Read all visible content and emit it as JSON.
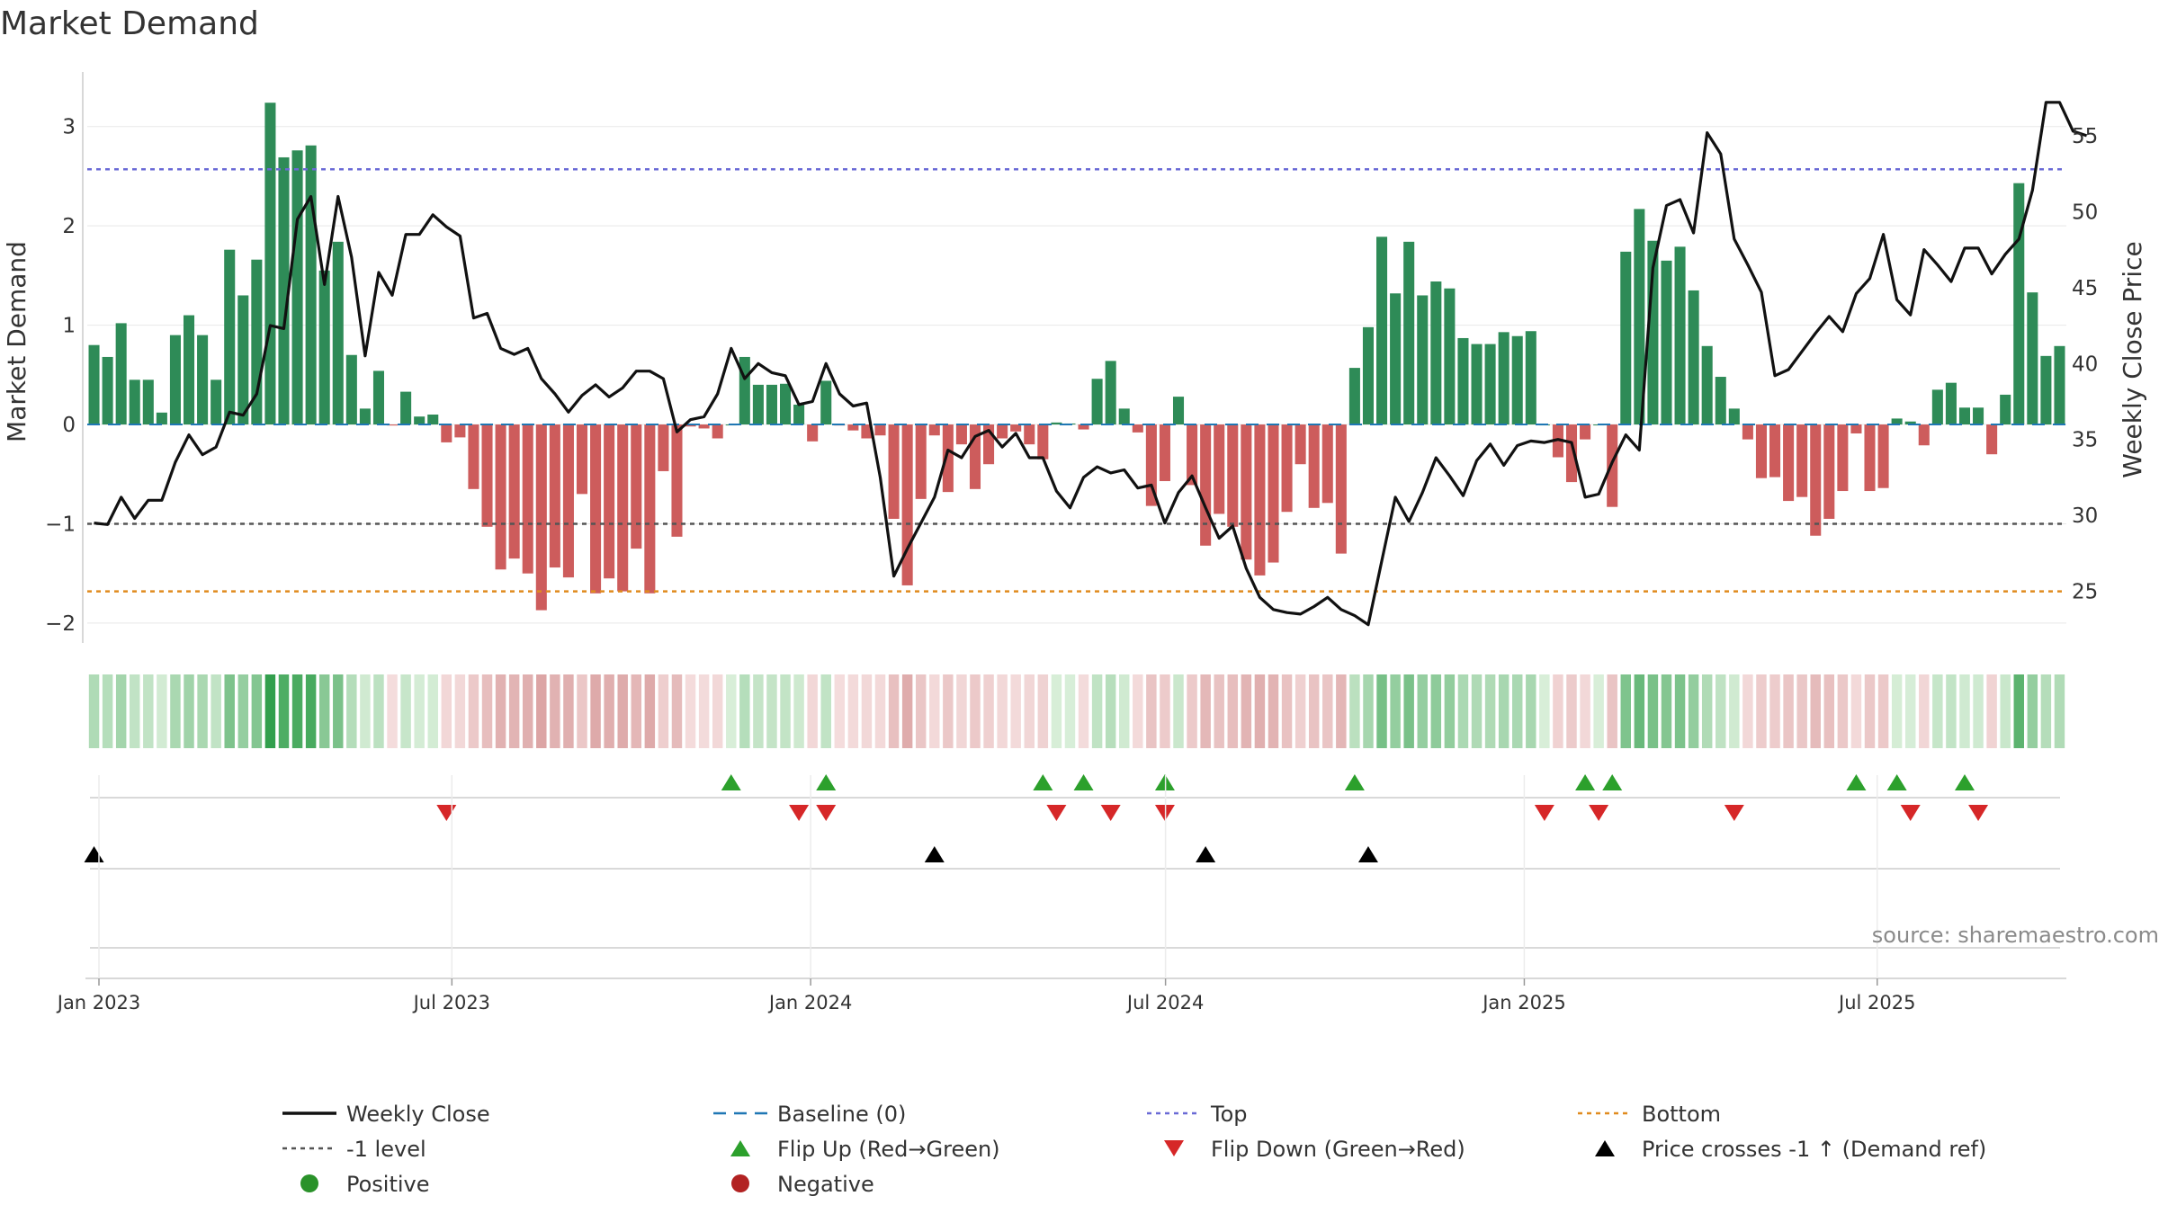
{
  "chart_data": {
    "type": "bar+line",
    "title": "Market Demand",
    "ylabel_left": "Market Demand",
    "ylabel_right": "Weekly Close Price",
    "ylim_left": [
      -2.2,
      3.55
    ],
    "yticks_left": [
      {
        "v": 3,
        "label": "3"
      },
      {
        "v": 2,
        "label": "2"
      },
      {
        "v": 1,
        "label": "1"
      },
      {
        "v": 0,
        "label": "0"
      },
      {
        "v": -1,
        "label": "−1"
      },
      {
        "v": -2,
        "label": "−2"
      }
    ],
    "ylim_right": [
      21.6,
      59.2
    ],
    "yticks_right": [
      {
        "v": 55,
        "label": "55"
      },
      {
        "v": 50,
        "label": "50"
      },
      {
        "v": 45,
        "label": "45"
      },
      {
        "v": 40,
        "label": "40"
      },
      {
        "v": 35,
        "label": "35"
      },
      {
        "v": 30,
        "label": "30"
      },
      {
        "v": 25,
        "label": "25"
      }
    ],
    "x_date_range": [
      "2022-12-26",
      "2025-10-06"
    ],
    "x_ticks": [
      {
        "date": "2023-01-01",
        "label": "Jan 2023"
      },
      {
        "date": "2023-07-01",
        "label": "Jul 2023"
      },
      {
        "date": "2024-01-01",
        "label": "Jan 2024"
      },
      {
        "date": "2024-07-01",
        "label": "Jul 2024"
      },
      {
        "date": "2025-01-01",
        "label": "Jan 2025"
      },
      {
        "date": "2025-07-01",
        "label": "Jul 2025"
      }
    ],
    "first_week": "2022-12-26",
    "demand": [
      0.8,
      0.68,
      1.02,
      0.45,
      0.45,
      0.12,
      0.9,
      1.1,
      0.9,
      0.45,
      1.76,
      1.3,
      1.66,
      3.24,
      2.69,
      2.76,
      2.81,
      1.55,
      1.84,
      0.7,
      0.16,
      0.54,
      -0.01,
      0.33,
      0.08,
      0.1,
      -0.18,
      -0.13,
      -0.65,
      -1.03,
      -1.46,
      -1.35,
      -1.5,
      -1.87,
      -1.44,
      -1.54,
      -0.7,
      -1.7,
      -1.55,
      -1.68,
      -1.25,
      -1.7,
      -0.47,
      -1.13,
      -0.02,
      -0.04,
      -0.14,
      0.0,
      0.68,
      0.4,
      0.4,
      0.41,
      0.2,
      -0.17,
      0.44,
      -0.01,
      -0.06,
      -0.14,
      -0.11,
      -0.95,
      -1.62,
      -0.75,
      -0.11,
      -0.68,
      -0.2,
      -0.65,
      -0.4,
      -0.14,
      -0.07,
      -0.2,
      -0.35,
      0.02,
      0.01,
      -0.05,
      0.46,
      0.64,
      0.16,
      -0.08,
      -0.82,
      -0.57,
      0.28,
      -0.61,
      -1.22,
      -0.9,
      -1.03,
      -1.36,
      -1.52,
      -1.39,
      -0.88,
      -0.4,
      -0.84,
      -0.79,
      -1.3,
      0.57,
      0.98,
      1.89,
      1.32,
      1.84,
      1.3,
      1.44,
      1.37,
      0.87,
      0.81,
      0.81,
      0.93,
      0.89,
      0.94,
      0.0,
      -0.33,
      -0.58,
      -0.15,
      0.0,
      -0.83,
      1.74,
      2.17,
      1.85,
      1.65,
      1.79,
      1.35,
      0.79,
      0.48,
      0.16,
      -0.15,
      -0.54,
      -0.53,
      -0.77,
      -0.73,
      -1.12,
      -0.95,
      -0.67,
      -0.09,
      -0.67,
      -0.64,
      0.06,
      0.03,
      -0.21,
      0.35,
      0.42,
      0.17,
      0.17,
      -0.3,
      0.3,
      2.43,
      1.33,
      0.69,
      0.79
    ],
    "price": [
      29.5,
      29.4,
      31.2,
      29.8,
      31.0,
      31.0,
      33.5,
      35.3,
      34.0,
      34.5,
      36.8,
      36.6,
      38.0,
      42.5,
      42.3,
      49.5,
      51.0,
      45.2,
      51.0,
      47.0,
      40.5,
      46.0,
      44.5,
      48.5,
      48.5,
      49.8,
      49.0,
      48.4,
      43.0,
      43.3,
      41.0,
      40.6,
      41.0,
      39.0,
      38.0,
      36.8,
      37.9,
      38.6,
      37.8,
      38.4,
      39.5,
      39.5,
      39.0,
      35.5,
      36.3,
      36.5,
      38.0,
      41.0,
      39.0,
      40.0,
      39.4,
      39.2,
      37.3,
      37.5,
      40.0,
      38.0,
      37.2,
      37.4,
      32.5,
      26.0,
      27.8,
      29.5,
      31.2,
      34.3,
      33.8,
      35.2,
      35.6,
      34.5,
      35.4,
      33.8,
      33.8,
      31.6,
      30.5,
      32.5,
      33.2,
      32.8,
      33.0,
      31.8,
      32.0,
      29.5,
      31.5,
      32.6,
      30.5,
      28.5,
      29.3,
      26.5,
      24.6,
      23.8,
      23.6,
      23.5,
      24.0,
      24.6,
      23.8,
      23.4,
      22.8,
      27.0,
      31.2,
      29.6,
      31.5,
      33.8,
      32.6,
      31.3,
      33.6,
      34.7,
      33.3,
      34.6,
      34.9,
      34.8,
      35.0,
      34.8,
      31.2,
      31.4,
      33.5,
      35.3,
      34.3,
      46.3,
      50.4,
      50.8,
      48.6,
      55.2,
      53.8,
      48.2,
      46.5,
      44.7,
      39.2,
      39.6,
      40.8,
      42.0,
      43.1,
      42.1,
      44.6,
      45.6,
      48.5,
      44.2,
      43.2,
      47.5,
      46.5,
      45.4,
      47.6,
      47.6,
      45.9,
      47.2,
      48.2,
      51.4,
      57.2,
      57.2,
      55.3,
      55.0
    ],
    "levels": {
      "top": 2.57,
      "minus1": -1.0,
      "bottom": -1.68
    },
    "flip_up_indices": [
      47,
      54,
      70,
      73,
      79,
      93,
      110,
      112,
      130,
      133,
      138
    ],
    "flip_down_indices": [
      26,
      52,
      54,
      71,
      75,
      79,
      107,
      111,
      121,
      134,
      139
    ],
    "price_cross_up_indices": [
      0,
      62,
      82,
      94
    ],
    "source": "source: sharemaestro.com",
    "colors": {
      "positive": "#2e8b57",
      "negative": "#cd5c5c",
      "price_line": "#111111",
      "baseline": "#1f77b4",
      "top": "#6a6ad6",
      "minus1": "#555555",
      "bottom": "#e08b1e",
      "flip_up": "#2ca02c",
      "flip_down": "#d62728",
      "cross": "#000000",
      "legend_positive": "#2a922a",
      "legend_negative": "#b22222",
      "grid": "#e8e8e8"
    },
    "legend": [
      {
        "key": "weekly-close",
        "label": "Weekly Close",
        "kind": "line-solid",
        "color": "#111111"
      },
      {
        "key": "baseline",
        "label": "Baseline (0)",
        "kind": "line-dash",
        "color": "#1f77b4"
      },
      {
        "key": "top",
        "label": "Top",
        "kind": "line-dot",
        "color": "#6a6ad6"
      },
      {
        "key": "bottom",
        "label": "Bottom",
        "kind": "line-dot",
        "color": "#e08b1e"
      },
      {
        "key": "minus1",
        "label": "-1 level",
        "kind": "line-dot",
        "color": "#555555"
      },
      {
        "key": "flip-up",
        "label": "Flip Up (Red→Green)",
        "kind": "tri-up",
        "color": "#2ca02c"
      },
      {
        "key": "flip-down",
        "label": "Flip Down (Green→Red)",
        "kind": "tri-down",
        "color": "#d62728"
      },
      {
        "key": "price-cross",
        "label": "Price crosses -1 ↑ (Demand ref)",
        "kind": "tri-up",
        "color": "#000000"
      },
      {
        "key": "positive",
        "label": "Positive",
        "kind": "dot",
        "color": "#2a922a"
      },
      {
        "key": "negative",
        "label": "Negative",
        "kind": "dot",
        "color": "#b22222"
      }
    ]
  }
}
